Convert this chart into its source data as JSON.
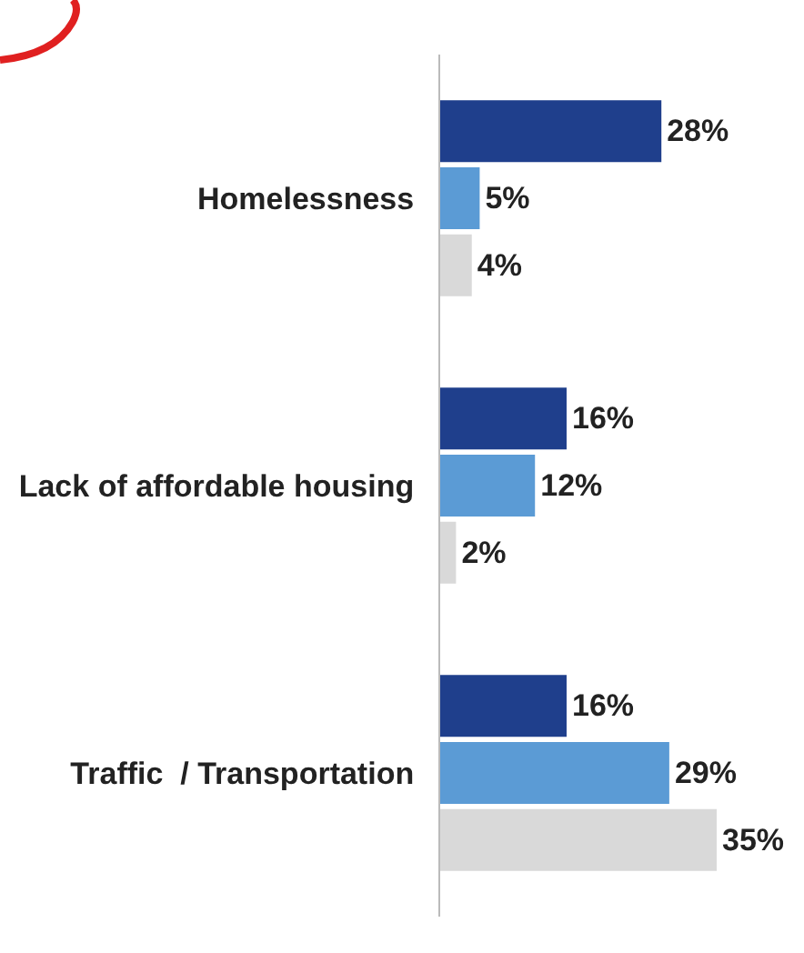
{
  "chart_data": {
    "type": "bar",
    "orientation": "horizontal",
    "categories": [
      "Homelessness",
      "Lack of affordable housing",
      "Traffic  / Transportation"
    ],
    "series": [
      {
        "color": "#1f3f8c",
        "values": [
          28,
          16,
          16
        ],
        "value_labels": [
          "28%",
          "16%",
          "16%"
        ]
      },
      {
        "color": "#5b9bd5",
        "values": [
          5,
          12,
          29
        ],
        "value_labels": [
          "5%",
          "12%",
          "29%"
        ]
      },
      {
        "color": "#d9d9d9",
        "values": [
          4,
          2,
          35
        ],
        "value_labels": [
          "4%",
          "2%",
          "35%"
        ]
      }
    ],
    "grid": false,
    "tick_labels": "y"
  }
}
